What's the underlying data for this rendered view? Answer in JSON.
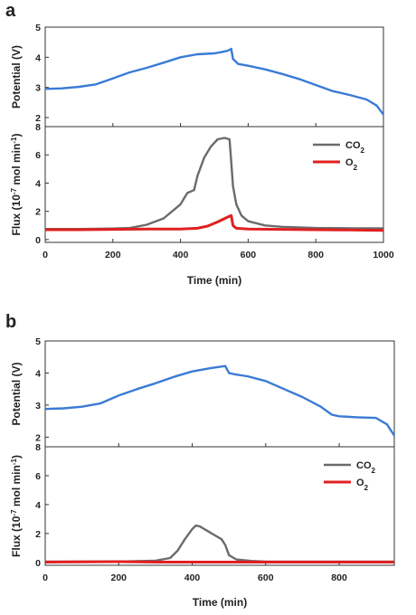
{
  "chart_data": [
    {
      "panel": "a",
      "type": "line",
      "xlabel": "Time (min)",
      "xlim": [
        0,
        1000
      ],
      "xticks": [
        0,
        200,
        400,
        600,
        800,
        1000
      ],
      "subplots": [
        {
          "ylabel": "Potential (V)",
          "ylim": [
            1.7,
            5
          ],
          "yticks": [
            2,
            3,
            4,
            5
          ],
          "series": [
            {
              "name": "Potential",
              "color": "#3a7bd5",
              "x": [
                0,
                50,
                100,
                150,
                200,
                250,
                300,
                350,
                400,
                450,
                500,
                520,
                540,
                550,
                555,
                570,
                600,
                650,
                700,
                750,
                800,
                850,
                900,
                950,
                980,
                1000
              ],
              "y": [
                2.95,
                2.97,
                3.02,
                3.1,
                3.3,
                3.5,
                3.65,
                3.82,
                4.0,
                4.1,
                4.13,
                4.17,
                4.22,
                4.28,
                3.95,
                3.78,
                3.72,
                3.6,
                3.45,
                3.28,
                3.08,
                2.88,
                2.75,
                2.6,
                2.4,
                2.1
              ]
            }
          ]
        },
        {
          "ylabel": "Flux (10⁻⁷ mol min⁻¹)",
          "ylim": [
            -0.2,
            8
          ],
          "yticks": [
            0,
            2,
            4,
            6,
            8
          ],
          "legend": "top-right",
          "series": [
            {
              "name": "CO₂",
              "color": "#6b6b6b",
              "x": [
                0,
                100,
                200,
                250,
                300,
                350,
                400,
                420,
                440,
                450,
                470,
                490,
                510,
                530,
                545,
                550,
                555,
                565,
                580,
                600,
                650,
                700,
                800,
                900,
                1000
              ],
              "y": [
                0.75,
                0.75,
                0.78,
                0.82,
                1.05,
                1.5,
                2.5,
                3.3,
                3.5,
                4.5,
                5.8,
                6.6,
                7.1,
                7.2,
                7.1,
                5.5,
                3.8,
                2.5,
                1.7,
                1.3,
                1.0,
                0.9,
                0.82,
                0.8,
                0.8
              ]
            },
            {
              "name": "O₂",
              "color": "#e02020",
              "x": [
                0,
                100,
                200,
                300,
                400,
                450,
                480,
                510,
                540,
                550,
                555,
                565,
                600,
                700,
                800,
                900,
                1000
              ],
              "y": [
                0.7,
                0.7,
                0.72,
                0.75,
                0.75,
                0.8,
                0.95,
                1.25,
                1.6,
                1.7,
                1.0,
                0.8,
                0.75,
                0.72,
                0.7,
                0.68,
                0.65
              ]
            }
          ]
        }
      ]
    },
    {
      "panel": "b",
      "type": "line",
      "xlabel": "Time (min)",
      "xlim": [
        0,
        950
      ],
      "xticks": [
        0,
        200,
        400,
        600,
        800
      ],
      "subplots": [
        {
          "ylabel": "Potential (V)",
          "ylim": [
            1.7,
            5
          ],
          "yticks": [
            2,
            3,
            4,
            5
          ],
          "series": [
            {
              "name": "Potential",
              "color": "#3a7bd5",
              "x": [
                0,
                50,
                100,
                150,
                200,
                250,
                300,
                350,
                400,
                450,
                490,
                500,
                520,
                550,
                600,
                650,
                700,
                750,
                780,
                800,
                850,
                900,
                930,
                950
              ],
              "y": [
                2.88,
                2.9,
                2.95,
                3.05,
                3.3,
                3.5,
                3.68,
                3.88,
                4.05,
                4.15,
                4.22,
                4.0,
                3.95,
                3.9,
                3.75,
                3.5,
                3.25,
                2.95,
                2.7,
                2.65,
                2.62,
                2.6,
                2.4,
                2.05
              ]
            }
          ]
        },
        {
          "ylabel": "Flux (10⁻⁷ mol min⁻¹)",
          "ylim": [
            -0.2,
            8
          ],
          "yticks": [
            0,
            2,
            4,
            6,
            8
          ],
          "legend": "top-right",
          "series": [
            {
              "name": "CO₂",
              "color": "#6b6b6b",
              "x": [
                0,
                100,
                200,
                300,
                340,
                360,
                380,
                400,
                410,
                420,
                440,
                460,
                480,
                490,
                500,
                520,
                560,
                600,
                950
              ],
              "y": [
                0.05,
                0.05,
                0.05,
                0.12,
                0.3,
                0.8,
                1.6,
                2.3,
                2.55,
                2.5,
                2.2,
                1.9,
                1.6,
                1.2,
                0.5,
                0.2,
                0.1,
                0.05,
                0.05
              ]
            },
            {
              "name": "O₂",
              "color": "#e02020",
              "x": [
                0,
                100,
                200,
                300,
                400,
                500,
                600,
                700,
                800,
                950
              ],
              "y": [
                0.02,
                0.03,
                0.05,
                0.02,
                0.02,
                0.02,
                0.02,
                0.02,
                0.02,
                0.02
              ]
            }
          ]
        }
      ]
    }
  ]
}
